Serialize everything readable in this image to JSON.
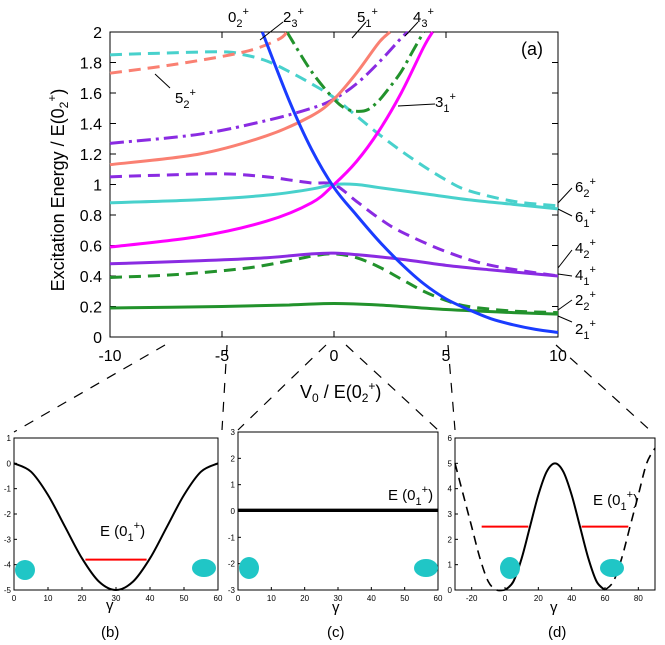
{
  "chart_data": [
    {
      "panel": "(a)",
      "type": "line",
      "xlabel": "V0 / E(02+)",
      "ylabel": "Excitation Energy / E(02+)",
      "xlim": [
        -10,
        10
      ],
      "ylim": [
        0,
        2
      ],
      "xticks": [
        "-10",
        "-5",
        "0",
        "5",
        "10"
      ],
      "yticks": [
        "0",
        "0.2",
        "0.4",
        "0.6",
        "0.8",
        "1",
        "1.2",
        "1.4",
        "1.6",
        "1.8",
        "2"
      ],
      "series": [
        {
          "name": "2_1+",
          "color": "#22922c",
          "dash": "solid",
          "x": [
            -10,
            -5,
            -2,
            0,
            2,
            5,
            8,
            10
          ],
          "y": [
            0.19,
            0.2,
            0.21,
            0.22,
            0.21,
            0.18,
            0.16,
            0.15
          ]
        },
        {
          "name": "2_2+",
          "color": "#22922c",
          "dash": "dash",
          "x": [
            -10,
            -7,
            -4,
            -2,
            -1,
            0,
            1,
            2,
            3,
            4,
            5,
            6,
            8,
            10
          ],
          "y": [
            0.39,
            0.41,
            0.45,
            0.5,
            0.53,
            0.545,
            0.52,
            0.46,
            0.38,
            0.3,
            0.24,
            0.2,
            0.17,
            0.16
          ]
        },
        {
          "name": "4_1+",
          "color": "#8a2be2",
          "dash": "solid",
          "x": [
            -10,
            -6,
            -3,
            -1,
            0,
            1,
            3,
            5,
            7,
            10
          ],
          "y": [
            0.48,
            0.5,
            0.52,
            0.545,
            0.55,
            0.54,
            0.51,
            0.47,
            0.44,
            0.4
          ]
        },
        {
          "name": "4_2+",
          "color": "#8a2be2",
          "dash": "dash",
          "x": [
            -10,
            -8,
            -5,
            -3,
            -2,
            -1,
            0,
            1,
            2,
            3,
            5,
            7,
            10
          ],
          "y": [
            1.05,
            1.06,
            1.07,
            1.05,
            1.03,
            1.01,
            1.0,
            0.89,
            0.78,
            0.69,
            0.56,
            0.47,
            0.4
          ]
        },
        {
          "name": "6_1+",
          "color": "#48d1cc",
          "dash": "solid",
          "x": [
            -10,
            -6,
            -3,
            -1,
            0,
            1,
            2,
            4,
            6,
            8,
            10
          ],
          "y": [
            0.88,
            0.9,
            0.93,
            0.97,
            1.0,
            1.0,
            0.98,
            0.94,
            0.9,
            0.87,
            0.84
          ]
        },
        {
          "name": "6_2+",
          "color": "#48d1cc",
          "dash": "dash",
          "x": [
            -10,
            -8,
            -5,
            -4,
            -3,
            -2,
            -1,
            0,
            1,
            2,
            3,
            4,
            5,
            6,
            8,
            10
          ],
          "y": [
            1.85,
            1.86,
            1.87,
            1.85,
            1.81,
            1.74,
            1.66,
            1.57,
            1.45,
            1.33,
            1.22,
            1.12,
            1.03,
            0.96,
            0.89,
            0.86
          ]
        },
        {
          "name": "6_1+ upper",
          "color": "#ff00ff",
          "dash": "solid",
          "x": [
            -10,
            -6,
            -3,
            -1,
            0,
            1,
            2,
            3,
            4,
            4.4
          ],
          "y": [
            0.59,
            0.66,
            0.76,
            0.88,
            1.0,
            1.15,
            1.35,
            1.6,
            1.9,
            2.0
          ]
        },
        {
          "name": "3_1+",
          "color": "#22922c",
          "dash": "dashdot",
          "x": [
            -2.1,
            -1,
            0,
            0.5,
            1,
            1.5,
            2,
            2.5,
            3,
            3.5,
            4
          ],
          "y": [
            2.0,
            1.74,
            1.56,
            1.5,
            1.48,
            1.49,
            1.55,
            1.64,
            1.74,
            1.87,
            2.0
          ]
        },
        {
          "name": "4_3+",
          "color": "#8a2be2",
          "dash": "dashdot",
          "x": [
            -10,
            -6,
            -3,
            -1,
            0,
            1,
            2,
            3,
            3.3
          ],
          "y": [
            1.27,
            1.33,
            1.42,
            1.5,
            1.56,
            1.66,
            1.8,
            1.96,
            2.0
          ]
        },
        {
          "name": "5_1+",
          "color": "#fa8072",
          "dash": "solid",
          "x": [
            -10,
            -6,
            -3,
            -1,
            0,
            1,
            2,
            2.5
          ],
          "y": [
            1.13,
            1.2,
            1.32,
            1.45,
            1.56,
            1.73,
            1.93,
            2.0
          ]
        },
        {
          "name": "5_2+",
          "color": "#fa8072",
          "dash": "dash",
          "x": [
            -10,
            -7,
            -4,
            -2.5,
            -2.1
          ],
          "y": [
            1.73,
            1.79,
            1.87,
            1.95,
            2.0
          ]
        },
        {
          "name": "0_2+",
          "color": "#1a3cff",
          "dash": "solid",
          "x": [
            -3.2,
            -2,
            -1,
            0,
            1,
            2,
            3,
            4,
            5,
            6,
            7,
            8,
            9,
            10
          ],
          "y": [
            2.0,
            1.55,
            1.23,
            0.98,
            0.8,
            0.63,
            0.48,
            0.35,
            0.25,
            0.18,
            0.12,
            0.08,
            0.05,
            0.03
          ]
        }
      ],
      "panel_label": "(a)"
    },
    {
      "panel": "(b)",
      "type": "line",
      "xlabel": "γ",
      "caption": "(b)",
      "xlim": [
        0,
        60
      ],
      "ylim": [
        -5,
        1
      ],
      "xticks": [
        "0",
        "10",
        "20",
        "30",
        "40",
        "50",
        "60"
      ],
      "yticks": [
        "-5",
        "-4",
        "-3",
        "-2",
        "-1",
        "0",
        "1"
      ],
      "potential": {
        "x": [
          0,
          5,
          10,
          15,
          20,
          25,
          30,
          35,
          40,
          45,
          50,
          55,
          60
        ],
        "y": [
          0,
          -0.33,
          -1.25,
          -2.5,
          -3.75,
          -4.67,
          -5,
          -4.67,
          -3.75,
          -2.5,
          -1.25,
          -0.33,
          0
        ]
      },
      "level": {
        "label": "E (0_1^+)",
        "value": -3.8,
        "x_range": [
          21,
          39
        ]
      }
    },
    {
      "panel": "(c)",
      "type": "line",
      "xlabel": "γ",
      "caption": "(c)",
      "xlim": [
        0,
        60
      ],
      "ylim": [
        -3,
        3
      ],
      "xticks": [
        "0",
        "10",
        "20",
        "30",
        "40",
        "50",
        "60"
      ],
      "yticks": [
        "-3",
        "-2",
        "-1",
        "0",
        "1",
        "2",
        "3"
      ],
      "potential": {
        "x": [
          0,
          60
        ],
        "y": [
          0,
          0
        ]
      },
      "level": {
        "label": "E (0_1^+)",
        "value": 0.05,
        "x_range": [
          0,
          60
        ]
      }
    },
    {
      "panel": "(d)",
      "type": "line",
      "xlabel": "γ",
      "caption": "(d)",
      "xlim": [
        -30,
        90
      ],
      "ylim": [
        0,
        6
      ],
      "xticks": [
        "-20",
        "0",
        "20",
        "40",
        "60",
        "80"
      ],
      "yticks": [
        "0",
        "1",
        "2",
        "3",
        "4",
        "5",
        "6"
      ],
      "potential": {
        "x": [
          0,
          5,
          10,
          15,
          20,
          25,
          30,
          35,
          40,
          45,
          50,
          55,
          60
        ],
        "y": [
          0,
          0.33,
          1.25,
          2.5,
          3.75,
          4.67,
          5,
          4.67,
          3.75,
          2.5,
          1.25,
          0.33,
          0
        ]
      },
      "potential_dashed": {
        "x": [
          -30,
          -25,
          -20,
          -15,
          -10,
          -5,
          0
        ],
        "y": [
          5,
          3.75,
          2.5,
          1.25,
          0.33,
          0,
          0
        ],
        "x2": [
          60,
          65,
          70,
          75,
          80,
          85,
          90
        ],
        "y2": [
          0,
          0.33,
          1.25,
          2.5,
          3.75,
          5,
          5.6
        ]
      },
      "level": {
        "label": "E (0_1^+)",
        "value": 2.5,
        "x_ranges": [
          [
            -14,
            14
          ],
          [
            46,
            74
          ]
        ]
      }
    }
  ],
  "level_labels": [
    {
      "id": "l02",
      "base": "0",
      "sub": "2",
      "sup": "+"
    },
    {
      "id": "l23",
      "base": "2",
      "sub": "3",
      "sup": "+"
    },
    {
      "id": "l51",
      "base": "5",
      "sub": "1",
      "sup": "+"
    },
    {
      "id": "l43",
      "base": "4",
      "sub": "3",
      "sup": "+"
    },
    {
      "id": "l52",
      "base": "5",
      "sub": "2",
      "sup": "+"
    },
    {
      "id": "l31",
      "base": "3",
      "sub": "1",
      "sup": "+"
    },
    {
      "id": "l62",
      "base": "6",
      "sub": "2",
      "sup": "+"
    },
    {
      "id": "l61",
      "base": "6",
      "sub": "1",
      "sup": "+"
    },
    {
      "id": "l42",
      "base": "4",
      "sub": "2",
      "sup": "+"
    },
    {
      "id": "l41",
      "base": "4",
      "sub": "1",
      "sup": "+"
    },
    {
      "id": "l22",
      "base": "2",
      "sub": "2",
      "sup": "+"
    },
    {
      "id": "l21",
      "base": "2",
      "sub": "1",
      "sup": "+"
    }
  ],
  "labels": {
    "ylabel_main": "Excitation Energy / E(0",
    "ylabel_sub": "2",
    "ylabel_sup": "+",
    "ylabel_end": ")",
    "xlabel_v": "V",
    "xlabel_sub": "0",
    "xlabel_rest": " / E(0",
    "xlabel_sub2": "2",
    "xlabel_sup": "+",
    "xlabel_end": ")",
    "level_text": "E (0",
    "level_sub": "1",
    "level_sup": "+",
    "level_end": ")",
    "gamma": "γ"
  },
  "colors": {
    "green": "#22922c",
    "purple": "#8a2be2",
    "cyan": "#48d1cc",
    "magenta": "#ff00ff",
    "salmon": "#fa8072",
    "blue": "#1a3cff",
    "red": "#ff0000",
    "shape": "#20c6c6"
  }
}
